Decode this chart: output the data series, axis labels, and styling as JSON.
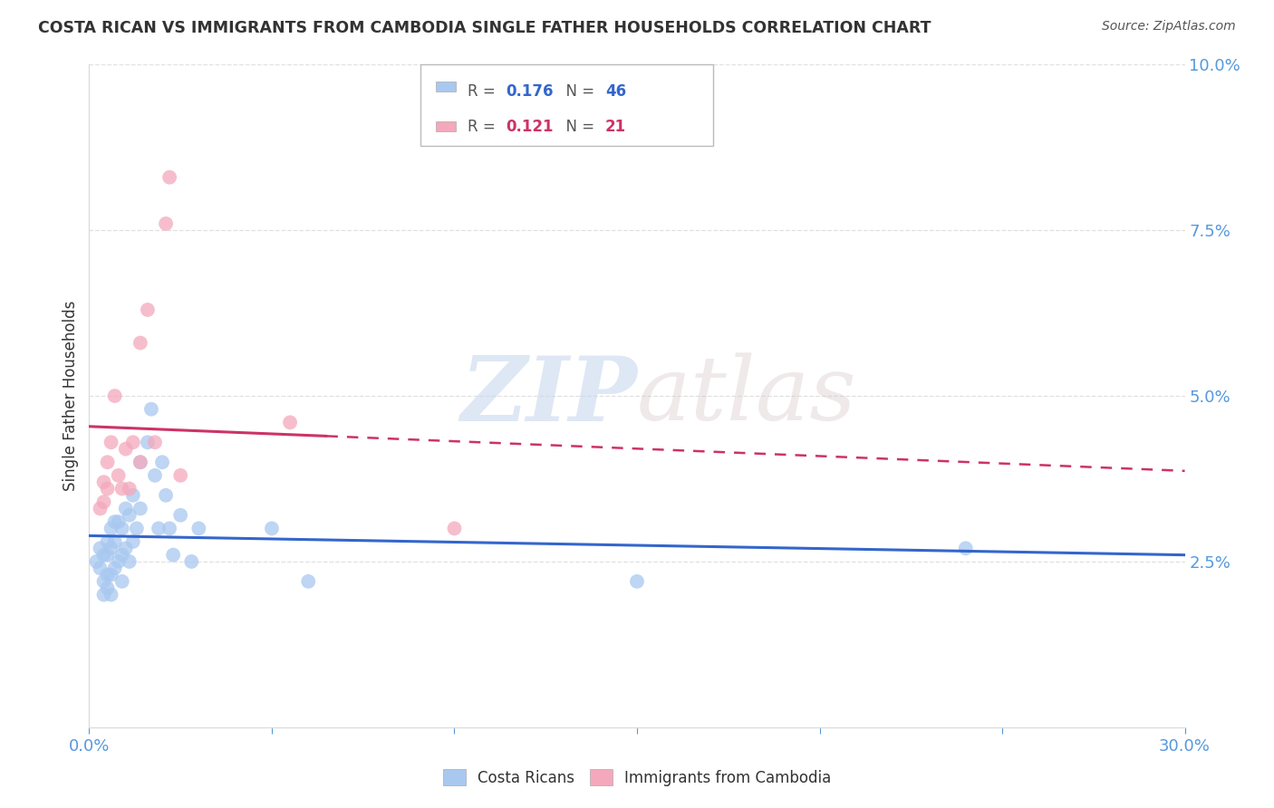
{
  "title": "COSTA RICAN VS IMMIGRANTS FROM CAMBODIA SINGLE FATHER HOUSEHOLDS CORRELATION CHART",
  "source": "Source: ZipAtlas.com",
  "ylabel": "Single Father Households",
  "watermark": "ZIPatlas",
  "xlim": [
    0.0,
    0.3
  ],
  "ylim": [
    0.0,
    0.1
  ],
  "yticks": [
    0.025,
    0.05,
    0.075,
    0.1
  ],
  "ytick_labels": [
    "2.5%",
    "5.0%",
    "7.5%",
    "10.0%"
  ],
  "xticks": [
    0.0,
    0.05,
    0.1,
    0.15,
    0.2,
    0.25,
    0.3
  ],
  "blue_r": 0.176,
  "blue_n": 46,
  "pink_r": 0.121,
  "pink_n": 21,
  "blue_color": "#A8C8F0",
  "pink_color": "#F4A8BC",
  "blue_line_color": "#3366CC",
  "pink_line_color": "#CC3366",
  "axis_color": "#5599DD",
  "grid_color": "#DDDDDD",
  "background_color": "#FFFFFF",
  "title_color": "#333333",
  "blue_scatter_x": [
    0.002,
    0.003,
    0.003,
    0.004,
    0.004,
    0.004,
    0.005,
    0.005,
    0.005,
    0.005,
    0.006,
    0.006,
    0.006,
    0.006,
    0.007,
    0.007,
    0.007,
    0.008,
    0.008,
    0.009,
    0.009,
    0.009,
    0.01,
    0.01,
    0.011,
    0.011,
    0.012,
    0.012,
    0.013,
    0.014,
    0.014,
    0.016,
    0.017,
    0.018,
    0.019,
    0.02,
    0.021,
    0.022,
    0.023,
    0.025,
    0.028,
    0.03,
    0.05,
    0.06,
    0.15,
    0.24
  ],
  "blue_scatter_y": [
    0.025,
    0.027,
    0.024,
    0.026,
    0.022,
    0.02,
    0.028,
    0.026,
    0.023,
    0.021,
    0.03,
    0.027,
    0.023,
    0.02,
    0.031,
    0.028,
    0.024,
    0.031,
    0.025,
    0.03,
    0.026,
    0.022,
    0.033,
    0.027,
    0.032,
    0.025,
    0.035,
    0.028,
    0.03,
    0.04,
    0.033,
    0.043,
    0.048,
    0.038,
    0.03,
    0.04,
    0.035,
    0.03,
    0.026,
    0.032,
    0.025,
    0.03,
    0.03,
    0.022,
    0.022,
    0.027
  ],
  "pink_scatter_x": [
    0.003,
    0.004,
    0.004,
    0.005,
    0.005,
    0.006,
    0.007,
    0.008,
    0.009,
    0.01,
    0.011,
    0.012,
    0.014,
    0.014,
    0.016,
    0.018,
    0.021,
    0.022,
    0.025,
    0.055,
    0.1
  ],
  "pink_scatter_y": [
    0.033,
    0.037,
    0.034,
    0.04,
    0.036,
    0.043,
    0.05,
    0.038,
    0.036,
    0.042,
    0.036,
    0.043,
    0.058,
    0.04,
    0.063,
    0.043,
    0.076,
    0.083,
    0.038,
    0.046,
    0.03
  ],
  "pink_line_solid_end": 0.065,
  "pink_line_dashed_end": 0.3
}
